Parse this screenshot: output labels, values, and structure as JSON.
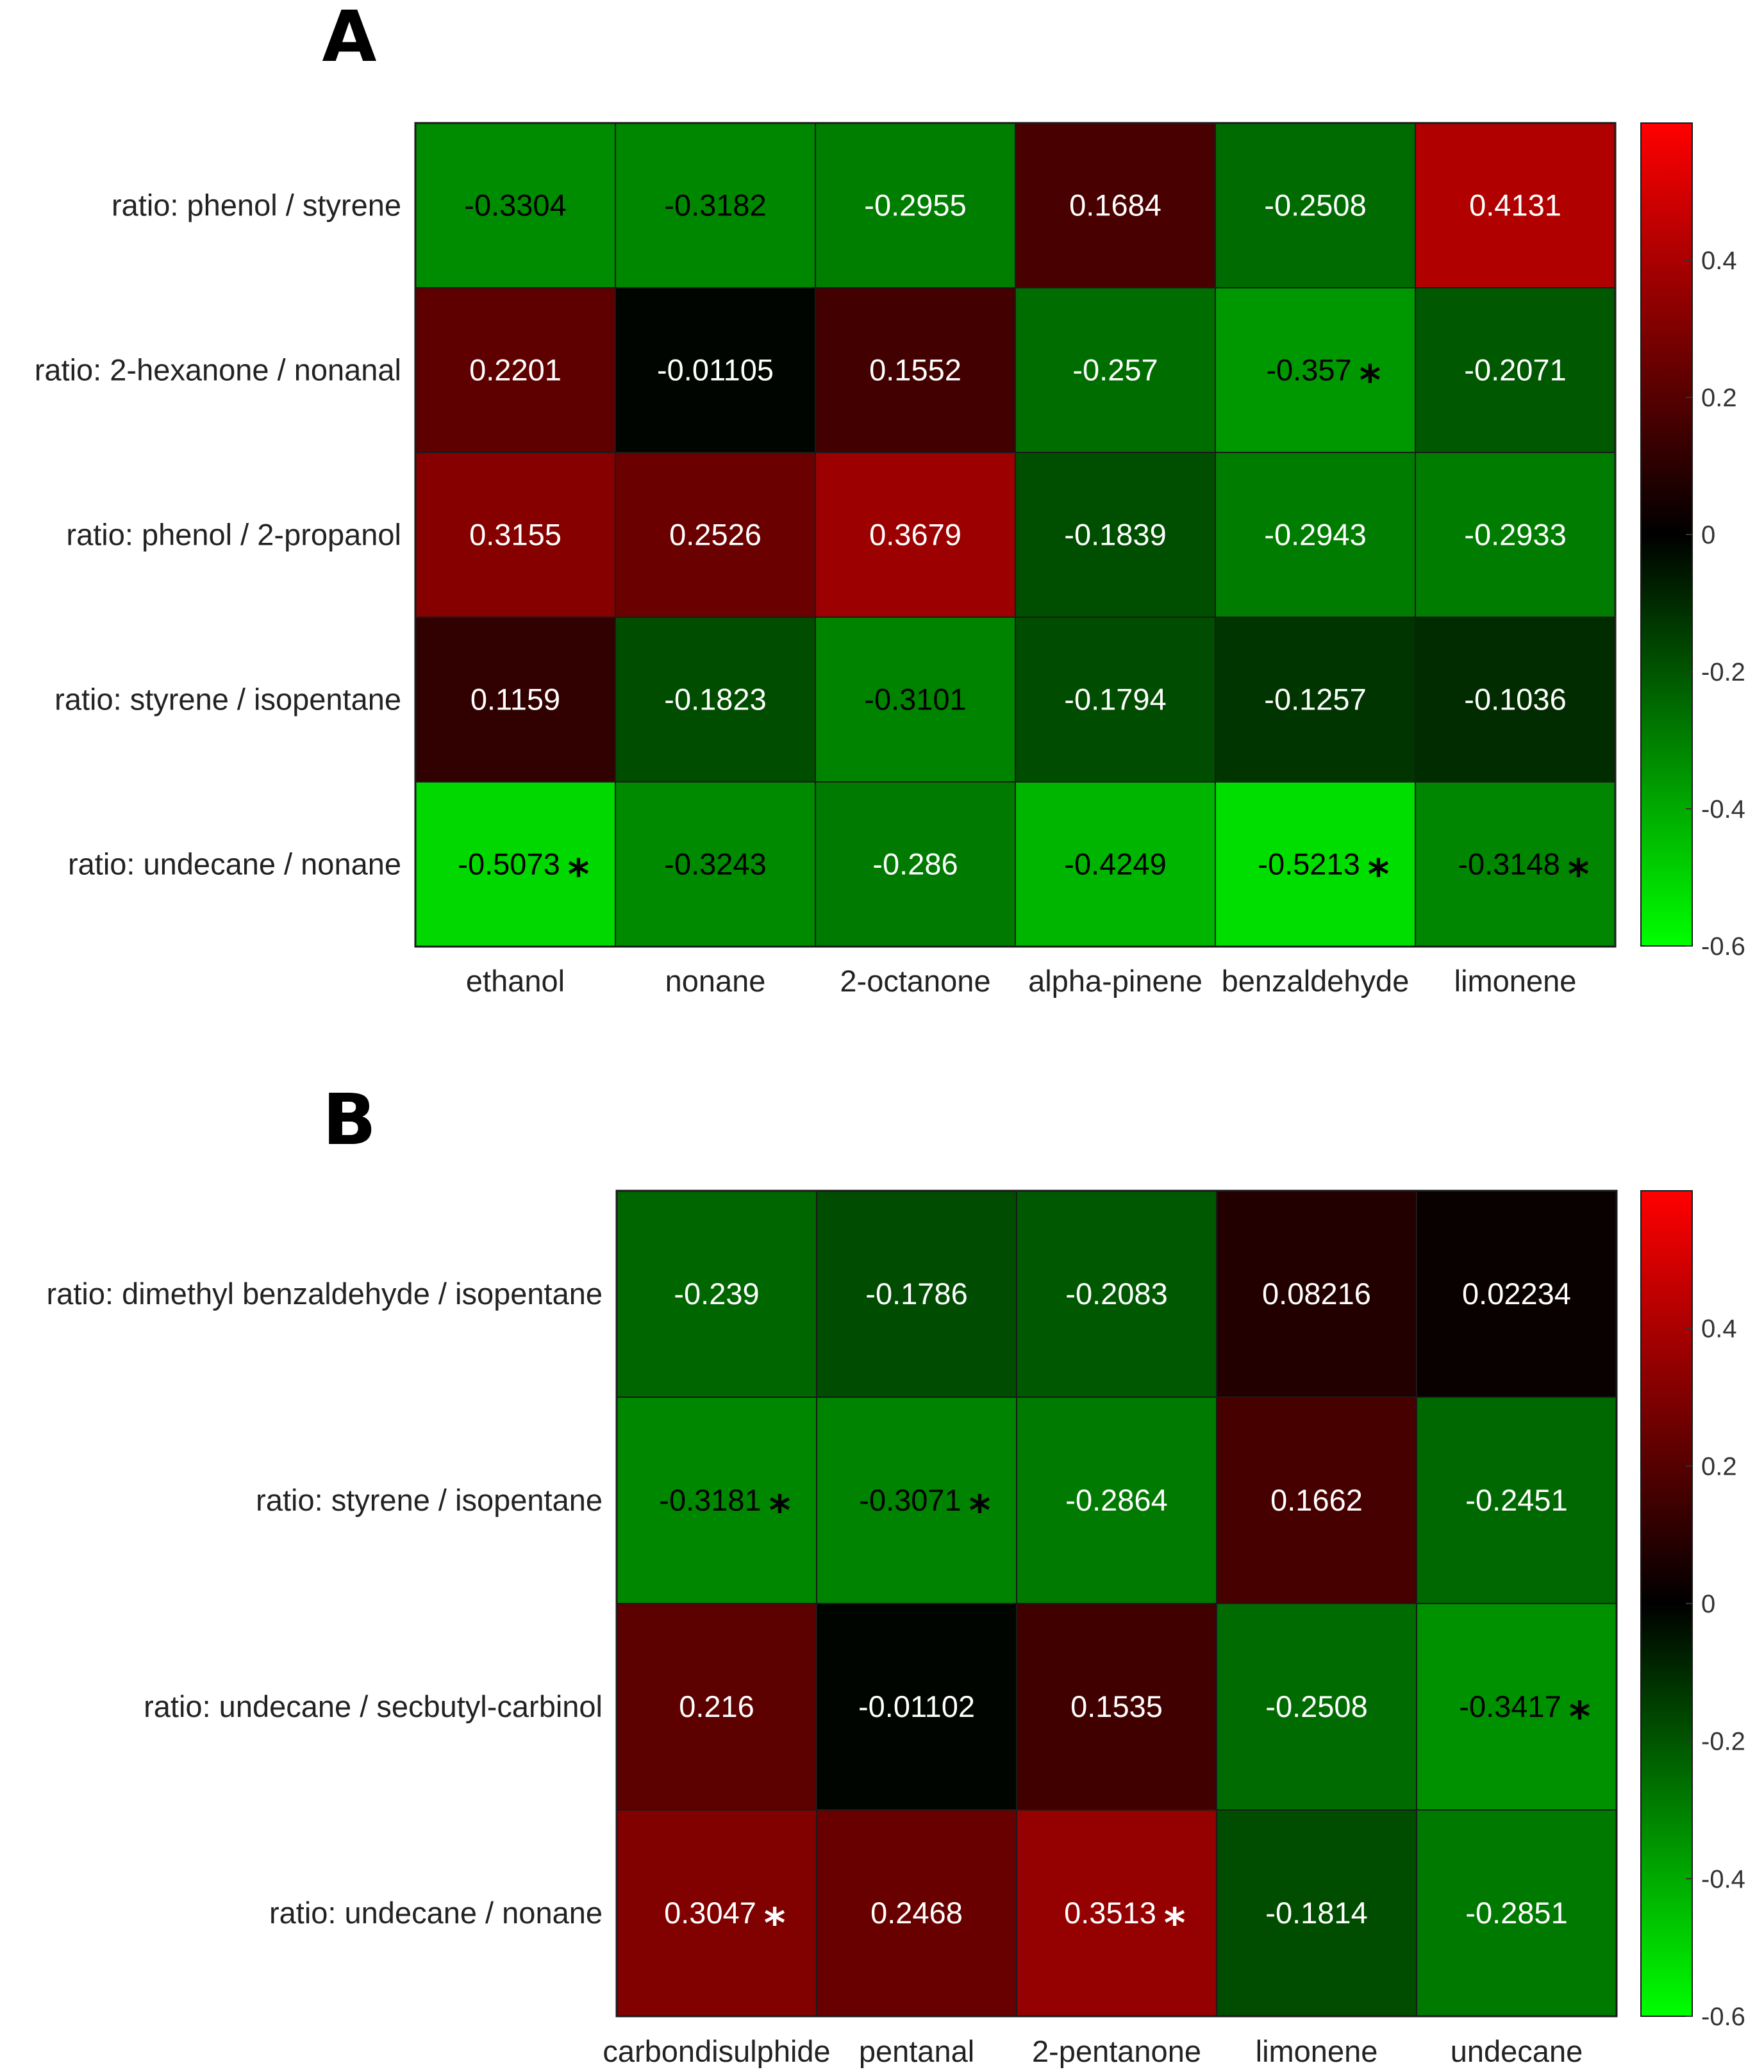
{
  "chart_data": [
    {
      "type": "heatmap",
      "panel_label": "A",
      "title": "",
      "rows": [
        "ratio: phenol / styrene",
        "ratio: 2-hexanone / nonanal",
        "ratio: phenol / 2-propanol",
        "ratio: styrene / isopentane",
        "ratio: undecane / nonane"
      ],
      "columns": [
        "ethanol",
        "nonane",
        "2-octanone",
        "alpha-pinene",
        "benzaldehyde",
        "limonene"
      ],
      "values": [
        [
          "-0.3304",
          "-0.3182",
          "-0.2955",
          "0.1684",
          "-0.2508",
          "0.4131"
        ],
        [
          "0.2201",
          "-0.01105",
          "0.1552",
          "-0.257",
          "-0.357",
          "-0.2071"
        ],
        [
          "0.3155",
          "0.2526",
          "0.3679",
          "-0.1839",
          "-0.2943",
          "-0.2933"
        ],
        [
          "0.1159",
          "-0.1823",
          "-0.3101",
          "-0.1794",
          "-0.1257",
          "-0.1036"
        ],
        [
          "-0.5073",
          "-0.3243",
          "-0.286",
          "-0.4249",
          "-0.5213",
          "-0.3148"
        ]
      ],
      "significant": [
        [
          false,
          false,
          false,
          false,
          false,
          false
        ],
        [
          false,
          false,
          false,
          false,
          true,
          false
        ],
        [
          false,
          false,
          false,
          false,
          false,
          false
        ],
        [
          false,
          false,
          false,
          false,
          false,
          false
        ],
        [
          true,
          false,
          false,
          false,
          true,
          true
        ]
      ],
      "significance_marker": "*",
      "colorbar": {
        "min": -0.6,
        "max": 0.6,
        "ticks": [
          "0.4",
          "0.2",
          "0",
          "-0.2",
          "-0.4",
          "-0.6"
        ],
        "tick_values": [
          0.4,
          0.2,
          0,
          -0.2,
          -0.4,
          -0.6
        ]
      },
      "colormap": {
        "negative": "#00ff00",
        "zero": "#000000",
        "positive": "#ff0000"
      }
    },
    {
      "type": "heatmap",
      "panel_label": "B",
      "title": "",
      "rows": [
        "ratio: dimethyl benzaldehyde / isopentane",
        "ratio: styrene / isopentane",
        "ratio: undecane / secbutyl-carbinol",
        "ratio: undecane / nonane"
      ],
      "columns": [
        "carbondisulphide",
        "pentanal",
        "2-pentanone",
        "limonene",
        "undecane"
      ],
      "values": [
        [
          "-0.239",
          "-0.1786",
          "-0.2083",
          "0.08216",
          "0.02234"
        ],
        [
          "-0.3181",
          "-0.3071",
          "-0.2864",
          "0.1662",
          "-0.2451"
        ],
        [
          "0.216",
          "-0.01102",
          "0.1535",
          "-0.2508",
          "-0.3417"
        ],
        [
          "0.3047",
          "0.2468",
          "0.3513",
          "-0.1814",
          "-0.2851"
        ]
      ],
      "significant": [
        [
          false,
          false,
          false,
          false,
          false
        ],
        [
          true,
          true,
          false,
          false,
          false
        ],
        [
          false,
          false,
          false,
          false,
          true
        ],
        [
          true,
          false,
          true,
          false,
          false
        ]
      ],
      "significance_marker": "*",
      "colorbar": {
        "min": -0.6,
        "max": 0.6,
        "ticks": [
          "0.4",
          "0.2",
          "0",
          "-0.2",
          "-0.4",
          "-0.6"
        ],
        "tick_values": [
          0.4,
          0.2,
          0,
          -0.2,
          -0.4,
          -0.6
        ]
      },
      "colormap": {
        "negative": "#00ff00",
        "zero": "#000000",
        "positive": "#ff0000"
      }
    }
  ]
}
